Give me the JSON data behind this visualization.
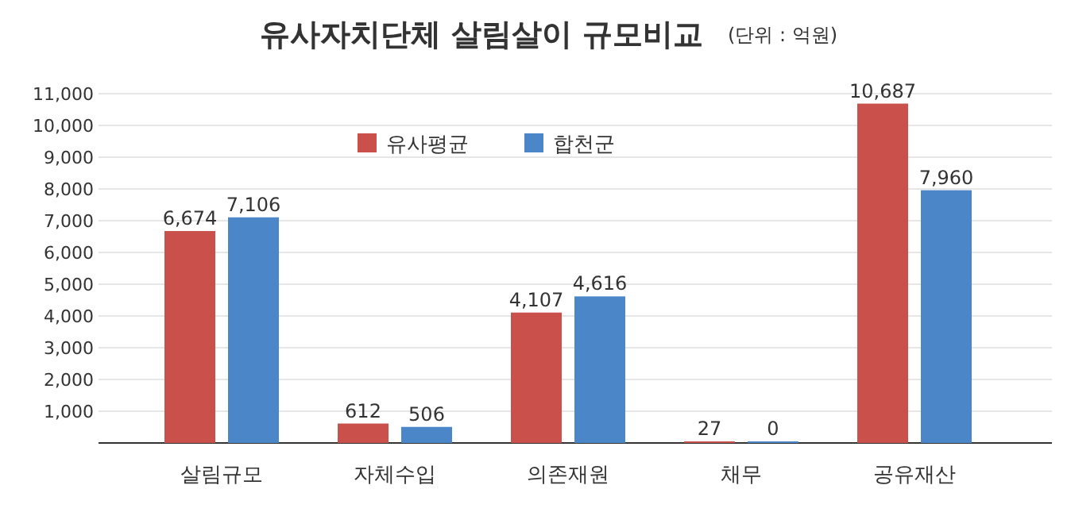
{
  "chart_data": {
    "type": "bar",
    "title": "유사자치단체 살림살이 규모비교",
    "subtitle": "(단위 : 억원)",
    "categories": [
      "살림규모",
      "자체수입",
      "의존재원",
      "채무",
      "공유재산"
    ],
    "series": [
      {
        "name": "유사평균",
        "color": "#c9504b",
        "values": [
          6674,
          612,
          4107,
          27,
          10687
        ],
        "value_labels": [
          "6,674",
          "612",
          "4,107",
          "27",
          "10,687"
        ]
      },
      {
        "name": "합천군",
        "color": "#4a86c8",
        "values": [
          7106,
          506,
          4616,
          0,
          7960
        ],
        "value_labels": [
          "7,106",
          "506",
          "4,616",
          "0",
          "7,960"
        ]
      }
    ],
    "ylim": [
      0,
      11000
    ],
    "yticks": [
      {
        "value": 1000,
        "label": "1,000"
      },
      {
        "value": 2000,
        "label": "2,000"
      },
      {
        "value": 3000,
        "label": "3,000"
      },
      {
        "value": 4000,
        "label": "4,000"
      },
      {
        "value": 5000,
        "label": "5,000"
      },
      {
        "value": 6000,
        "label": "6,000"
      },
      {
        "value": 7000,
        "label": "7,000"
      },
      {
        "value": 8000,
        "label": "8,000"
      },
      {
        "value": 9000,
        "label": "9,000"
      },
      {
        "value": 10000,
        "label": "10,000"
      },
      {
        "value": 11000,
        "label": "11,000"
      }
    ],
    "grid": "y",
    "legend": "top"
  }
}
